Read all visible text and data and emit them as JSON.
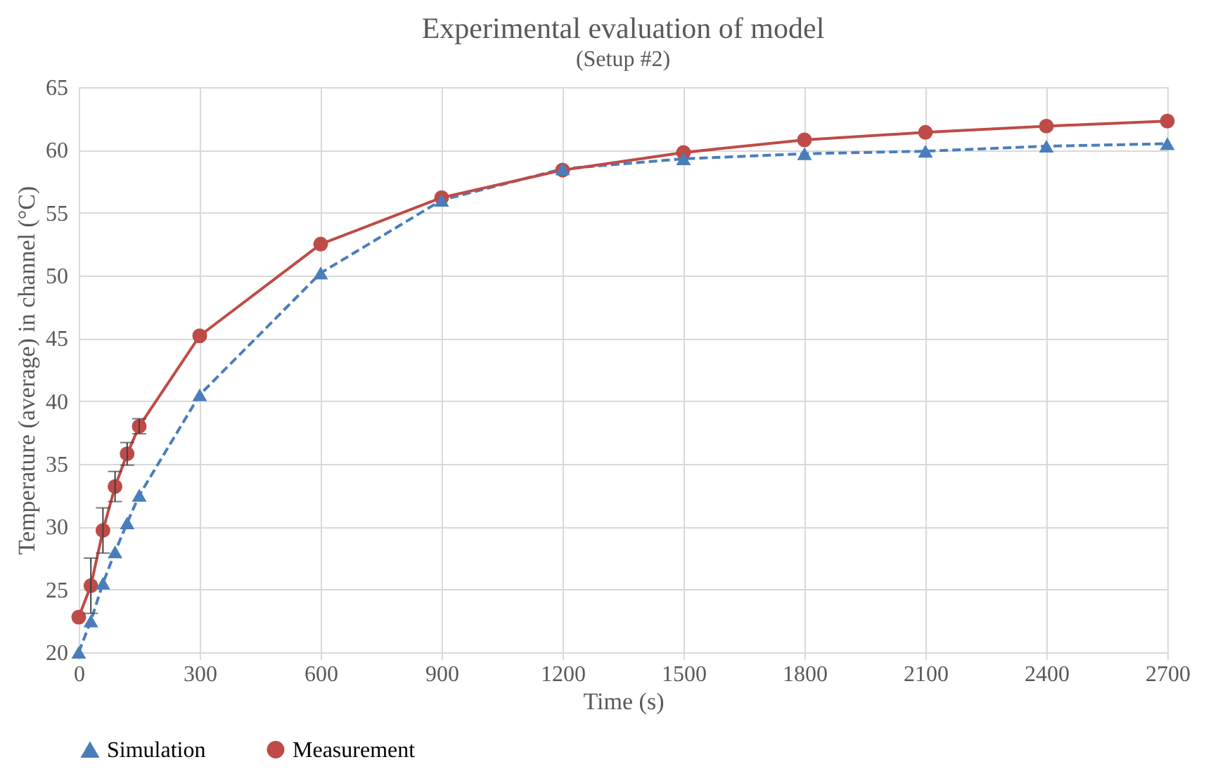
{
  "chart_data": {
    "type": "line",
    "title": "Experimental evaluation of model",
    "subtitle": "(Setup #2)",
    "xlabel": "Time (s)",
    "ylabel": "Temperature (average) in channel (°C)",
    "x": [
      0,
      30,
      60,
      90,
      120,
      150,
      300,
      600,
      900,
      1200,
      1500,
      1800,
      2100,
      2400,
      2700
    ],
    "series": [
      {
        "name": "Simulation",
        "color": "#4a7ebb",
        "marker": "triangle",
        "line_style": "dashed",
        "values": [
          20,
          22.5,
          25.5,
          28,
          30.3,
          32.5,
          40.5,
          50.2,
          56,
          58.5,
          59.3,
          59.7,
          59.9,
          60.3,
          60.5
        ]
      },
      {
        "name": "Measurement",
        "color": "#be4b48",
        "marker": "circle",
        "line_style": "solid",
        "values": [
          22.8,
          25.3,
          29.7,
          33.2,
          35.8,
          38,
          45.2,
          52.5,
          56.2,
          58.4,
          59.8,
          60.8,
          61.4,
          61.9,
          62.3
        ],
        "errors": [
          null,
          2.2,
          1.8,
          1.2,
          0.9,
          0.6,
          null,
          null,
          null,
          null,
          null,
          null,
          null,
          null,
          null
        ]
      }
    ],
    "xlim": [
      0,
      2700
    ],
    "xticks": [
      0,
      300,
      600,
      900,
      1200,
      1500,
      1800,
      2100,
      2400,
      2700
    ],
    "ylim": [
      20,
      65
    ],
    "yticks": [
      20,
      25,
      30,
      35,
      40,
      45,
      50,
      55,
      60,
      65
    ],
    "grid": true,
    "legend": "bottom"
  }
}
